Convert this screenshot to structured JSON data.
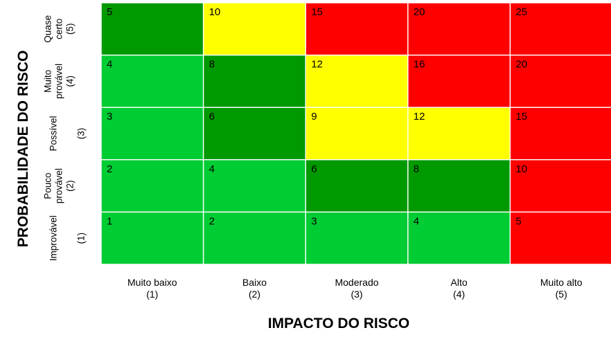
{
  "chart_data": {
    "type": "heatmap",
    "title": "",
    "xlabel": "IMPACTO DO RISCO",
    "ylabel": "PROBABILIDADE DO RISCO",
    "x_categories": [
      {
        "name": "Muito baixo",
        "level": "(1)"
      },
      {
        "name": "Baixo",
        "level": "(2)"
      },
      {
        "name": "Moderado",
        "level": "(3)"
      },
      {
        "name": "Alto",
        "level": "(4)"
      },
      {
        "name": "Muito alto",
        "level": "(5)"
      }
    ],
    "y_categories_top_to_bottom": [
      {
        "name_lines": [
          "Quase",
          "certo"
        ],
        "level": "(5)"
      },
      {
        "name_lines": [
          "Muito",
          "provável"
        ],
        "level": "(4)"
      },
      {
        "name_lines": [
          "Possível"
        ],
        "level": "(3)"
      },
      {
        "name_lines": [
          "Pouco",
          "provável"
        ],
        "level": "(2)"
      },
      {
        "name_lines": [
          "Improvável"
        ],
        "level": "(1)"
      }
    ],
    "values_top_to_bottom": [
      [
        5,
        10,
        15,
        20,
        25
      ],
      [
        4,
        8,
        12,
        16,
        20
      ],
      [
        3,
        6,
        9,
        12,
        15
      ],
      [
        2,
        4,
        6,
        8,
        10
      ],
      [
        1,
        2,
        3,
        4,
        5
      ]
    ],
    "cell_colors_top_to_bottom": [
      [
        "dark_green",
        "yellow",
        "red",
        "red",
        "red"
      ],
      [
        "light_green",
        "dark_green",
        "yellow",
        "red",
        "red"
      ],
      [
        "light_green",
        "dark_green",
        "yellow",
        "yellow",
        "red"
      ],
      [
        "light_green",
        "light_green",
        "dark_green",
        "dark_green",
        "red"
      ],
      [
        "light_green",
        "light_green",
        "light_green",
        "light_green",
        "red"
      ]
    ],
    "palette": {
      "light_green": "#00cc33",
      "dark_green": "#009900",
      "yellow": "#ffff00",
      "red": "#ff0000",
      "grid_line": "#ffffff"
    }
  }
}
